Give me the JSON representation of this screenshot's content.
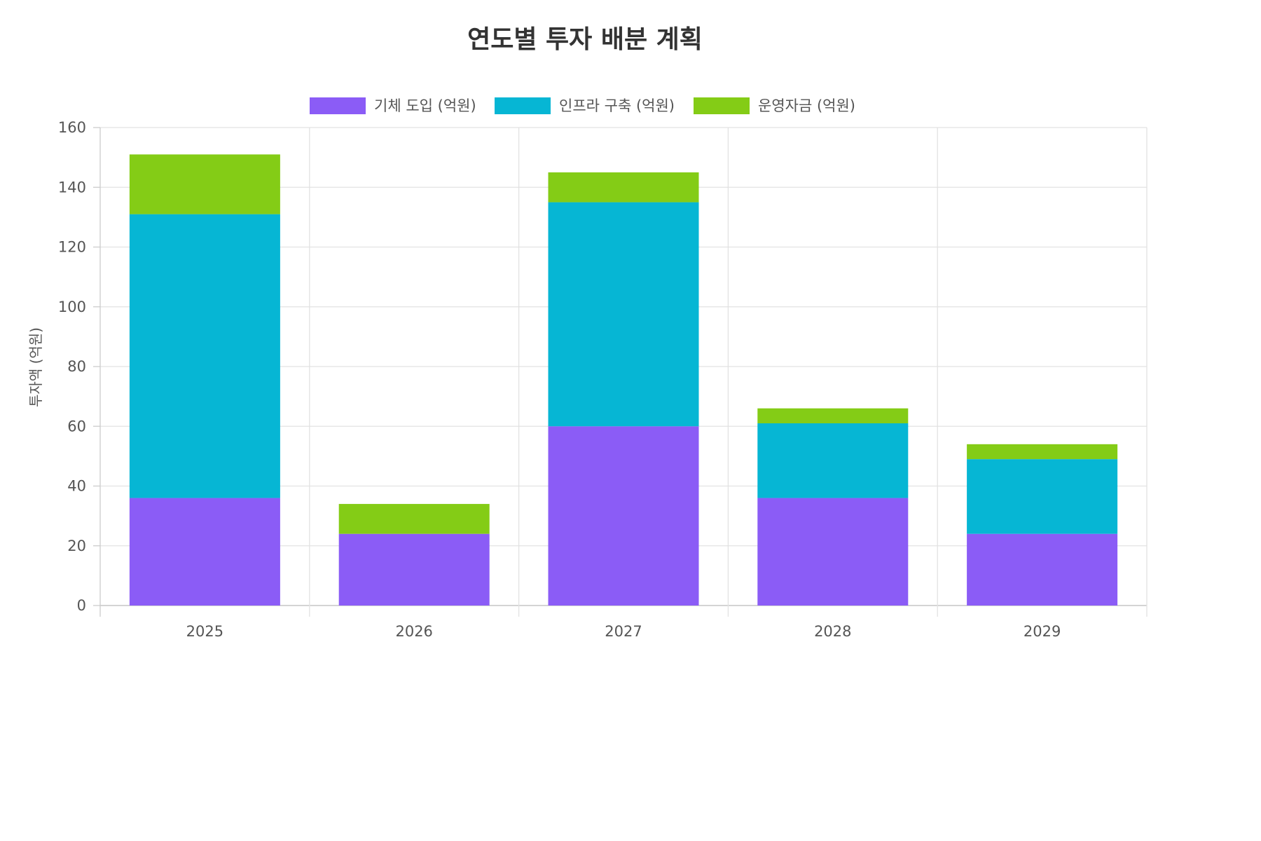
{
  "chart_data": {
    "type": "bar",
    "stacked": true,
    "title": "연도별 투자 배분 계획",
    "xlabel": "",
    "ylabel": "투자액 (억원)",
    "categories": [
      "2025",
      "2026",
      "2027",
      "2028",
      "2029"
    ],
    "series": [
      {
        "name": "기체 도입 (억원)",
        "color": "#8b5cf6",
        "values": [
          36,
          24,
          60,
          36,
          24
        ]
      },
      {
        "name": "인프라 구축 (억원)",
        "color": "#06b6d4",
        "values": [
          95,
          0,
          75,
          25,
          25
        ]
      },
      {
        "name": "운영자금 (억원)",
        "color": "#84cc16",
        "values": [
          20,
          10,
          10,
          5,
          5
        ]
      }
    ],
    "ylim": [
      0,
      160
    ],
    "yticks": [
      "0",
      "20",
      "40",
      "60",
      "80",
      "100",
      "120",
      "140",
      "160"
    ],
    "grid": true,
    "legend_position": "top"
  }
}
